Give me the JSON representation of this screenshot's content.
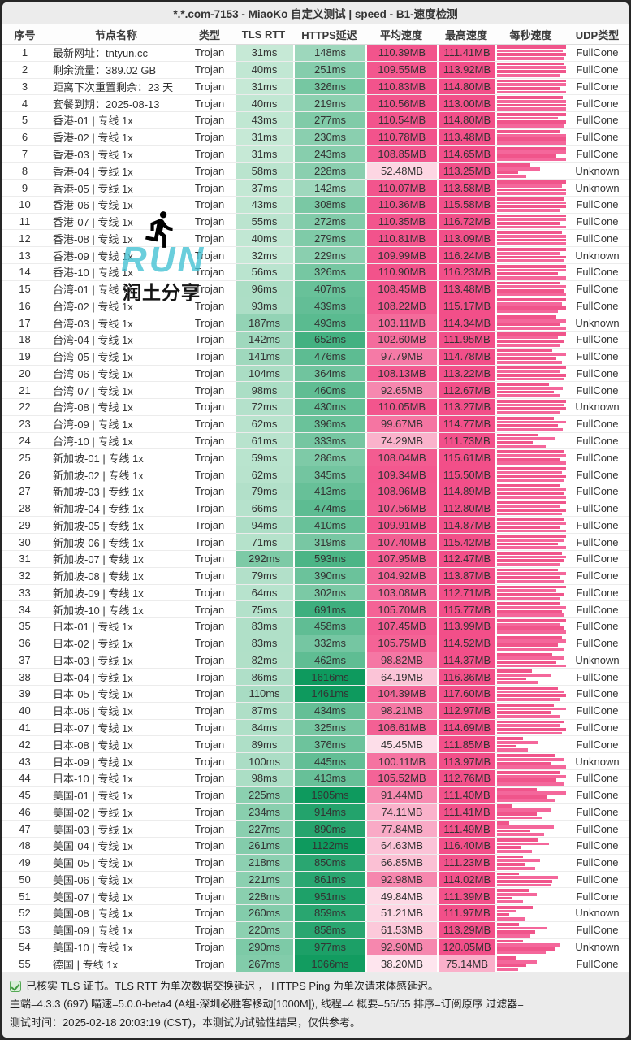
{
  "title": "*.*.com-7153 - MiaoKo 自定义测试 | speed - B1-速度检测",
  "columns": [
    "序号",
    "节点名称",
    "类型",
    "TLS RTT",
    "HTTPS延迟",
    "平均速度",
    "最高速度",
    "每秒速度",
    "UDP类型"
  ],
  "watermark": {
    "run_text": "RUN",
    "share_text": "润土分享",
    "run_color": "#4ac4d5",
    "runner_icon": "running-person"
  },
  "colors": {
    "green_light": "#e4f6ea",
    "green_dark": "#0e9a5e",
    "pink_light": "#fff5f8",
    "pink_deep": "#f24f89",
    "bar_pink": "#f0558b",
    "bar_pink_light": "#f4679b"
  },
  "footer": {
    "line1": "已核实 TLS 证书。TLS RTT 为单次数据交换延迟 ， HTTPS Ping 为单次请求体感延迟。",
    "line2": "主端=4.3.3 (697) 喵速=5.0.0-beta4 (A组-深圳必胜客移动[1000M]), 线程=4 概要=55/55 排序=订阅原序 过滤器=",
    "line3": "测试时间：2025-02-18 20:03:19 (CST)，本测试为试验性结果，仅供参考。"
  },
  "chart_data": {
    "type": "table",
    "title": "*.*.com-7153 - MiaoKo 自定义测试 | speed - B1-速度检测",
    "legend_position": "none",
    "categories": [
      "序号",
      "节点名称",
      "类型",
      "TLS RTT",
      "HTTPS延迟",
      "平均速度",
      "最高速度",
      "UDP类型"
    ]
  },
  "rows": [
    {
      "no": "1",
      "name": "最新网址：tntyun.cc",
      "type": "Trojan",
      "tls": "31ms",
      "https": "148ms",
      "avg": "110.39MB",
      "max": "111.41MB",
      "udp": "FullCone",
      "bars": [
        100,
        95,
        100,
        98
      ]
    },
    {
      "no": "2",
      "name": "剩余流量：389.02 GB",
      "type": "Trojan",
      "tls": "40ms",
      "https": "251ms",
      "avg": "109.55MB",
      "max": "113.92MB",
      "udp": "FullCone",
      "bars": [
        96,
        100,
        100,
        92
      ]
    },
    {
      "no": "3",
      "name": "距离下次重置剩余：23 天",
      "type": "Trojan",
      "tls": "31ms",
      "https": "326ms",
      "avg": "110.83MB",
      "max": "114.80MB",
      "udp": "FullCone",
      "bars": [
        100,
        100,
        90,
        100
      ]
    },
    {
      "no": "4",
      "name": "套餐到期：2025-08-13",
      "type": "Trojan",
      "tls": "40ms",
      "https": "219ms",
      "avg": "110.56MB",
      "max": "113.00MB",
      "udp": "FullCone",
      "bars": [
        95,
        100,
        100,
        100
      ]
    },
    {
      "no": "5",
      "name": "香港-01 | 专线 1x",
      "type": "Trojan",
      "tls": "43ms",
      "https": "277ms",
      "avg": "110.54MB",
      "max": "114.80MB",
      "udp": "FullCone",
      "bars": [
        100,
        88,
        100,
        96
      ]
    },
    {
      "no": "6",
      "name": "香港-02 | 专线 1x",
      "type": "Trojan",
      "tls": "31ms",
      "https": "230ms",
      "avg": "110.78MB",
      "max": "113.48MB",
      "udp": "FullCone",
      "bars": [
        92,
        100,
        100,
        100
      ]
    },
    {
      "no": "7",
      "name": "香港-03 | 专线 1x",
      "type": "Trojan",
      "tls": "31ms",
      "https": "243ms",
      "avg": "108.85MB",
      "max": "114.65MB",
      "udp": "FullCone",
      "bars": [
        100,
        100,
        86,
        100
      ]
    },
    {
      "no": "8",
      "name": "香港-04 | 专线 1x",
      "type": "Trojan",
      "tls": "58ms",
      "https": "228ms",
      "avg": "52.48MB",
      "max": "113.25MB",
      "udp": "Unknown",
      "bars": [
        48,
        62,
        30,
        42
      ]
    },
    {
      "no": "9",
      "name": "香港-05 | 专线 1x",
      "type": "Trojan",
      "tls": "37ms",
      "https": "142ms",
      "avg": "110.07MB",
      "max": "113.58MB",
      "udp": "Unknown",
      "bars": [
        100,
        94,
        100,
        100
      ]
    },
    {
      "no": "10",
      "name": "香港-06 | 专线 1x",
      "type": "Trojan",
      "tls": "43ms",
      "https": "308ms",
      "avg": "110.36MB",
      "max": "115.58MB",
      "udp": "FullCone",
      "bars": [
        96,
        100,
        100,
        90
      ]
    },
    {
      "no": "11",
      "name": "香港-07 | 专线 1x",
      "type": "Trojan",
      "tls": "55ms",
      "https": "272ms",
      "avg": "110.35MB",
      "max": "116.72MB",
      "udp": "FullCone",
      "bars": [
        100,
        100,
        92,
        100
      ]
    },
    {
      "no": "12",
      "name": "香港-08 | 专线 1x",
      "type": "Trojan",
      "tls": "40ms",
      "https": "279ms",
      "avg": "110.81MB",
      "max": "113.09MB",
      "udp": "FullCone",
      "bars": [
        94,
        100,
        100,
        100
      ]
    },
    {
      "no": "13",
      "name": "香港-09 | 专线 1x",
      "type": "Trojan",
      "tls": "32ms",
      "https": "229ms",
      "avg": "109.99MB",
      "max": "116.24MB",
      "udp": "Unknown",
      "bars": [
        100,
        90,
        100,
        96
      ]
    },
    {
      "no": "14",
      "name": "香港-10 | 专线 1x",
      "type": "Trojan",
      "tls": "56ms",
      "https": "326ms",
      "avg": "110.90MB",
      "max": "116.23MB",
      "udp": "FullCone",
      "bars": [
        100,
        100,
        88,
        100
      ]
    },
    {
      "no": "15",
      "name": "台湾-01 | 专线 1x",
      "type": "Trojan",
      "tls": "96ms",
      "https": "407ms",
      "avg": "108.45MB",
      "max": "113.48MB",
      "udp": "FullCone",
      "bars": [
        92,
        100,
        96,
        100
      ]
    },
    {
      "no": "16",
      "name": "台湾-02 | 专线 1x",
      "type": "Trojan",
      "tls": "93ms",
      "https": "439ms",
      "avg": "108.22MB",
      "max": "115.17MB",
      "udp": "FullCone",
      "bars": [
        100,
        94,
        100,
        88
      ]
    },
    {
      "no": "17",
      "name": "台湾-03 | 专线 1x",
      "type": "Trojan",
      "tls": "187ms",
      "https": "493ms",
      "avg": "103.11MB",
      "max": "114.34MB",
      "udp": "Unknown",
      "bars": [
        86,
        100,
        92,
        100
      ]
    },
    {
      "no": "18",
      "name": "台湾-04 | 专线 1x",
      "type": "Trojan",
      "tls": "142ms",
      "https": "652ms",
      "avg": "102.60MB",
      "max": "111.95MB",
      "udp": "FullCone",
      "bars": [
        100,
        88,
        96,
        92
      ]
    },
    {
      "no": "19",
      "name": "台湾-05 | 专线 1x",
      "type": "Trojan",
      "tls": "141ms",
      "https": "476ms",
      "avg": "97.79MB",
      "max": "114.78MB",
      "udp": "FullCone",
      "bars": [
        80,
        100,
        86,
        94
      ]
    },
    {
      "no": "20",
      "name": "台湾-06 | 专线 1x",
      "type": "Trojan",
      "tls": "104ms",
      "https": "364ms",
      "avg": "108.13MB",
      "max": "113.22MB",
      "udp": "FullCone",
      "bars": [
        100,
        92,
        100,
        96
      ]
    },
    {
      "no": "21",
      "name": "台湾-07 | 专线 1x",
      "type": "Trojan",
      "tls": "98ms",
      "https": "460ms",
      "avg": "92.65MB",
      "max": "112.67MB",
      "udp": "FullCone",
      "bars": [
        75,
        95,
        82,
        90
      ]
    },
    {
      "no": "22",
      "name": "台湾-08 | 专线 1x",
      "type": "Trojan",
      "tls": "72ms",
      "https": "430ms",
      "avg": "110.05MB",
      "max": "113.27MB",
      "udp": "Unknown",
      "bars": [
        100,
        96,
        100,
        92
      ]
    },
    {
      "no": "23",
      "name": "台湾-09 | 专线 1x",
      "type": "Trojan",
      "tls": "62ms",
      "https": "396ms",
      "avg": "99.67MB",
      "max": "114.77MB",
      "udp": "FullCone",
      "bars": [
        82,
        100,
        88,
        95
      ]
    },
    {
      "no": "24",
      "name": "台湾-10 | 专线 1x",
      "type": "Trojan",
      "tls": "61ms",
      "https": "333ms",
      "avg": "74.29MB",
      "max": "111.73MB",
      "udp": "FullCone",
      "bars": [
        60,
        85,
        52,
        70
      ]
    },
    {
      "no": "25",
      "name": "新加坡-01 | 专线 1x",
      "type": "Trojan",
      "tls": "59ms",
      "https": "286ms",
      "avg": "108.04MB",
      "max": "115.61MB",
      "udp": "FullCone",
      "bars": [
        96,
        100,
        92,
        100
      ]
    },
    {
      "no": "26",
      "name": "新加坡-02 | 专线 1x",
      "type": "Trojan",
      "tls": "62ms",
      "https": "345ms",
      "avg": "109.34MB",
      "max": "115.50MB",
      "udp": "FullCone",
      "bars": [
        100,
        94,
        100,
        96
      ]
    },
    {
      "no": "27",
      "name": "新加坡-03 | 专线 1x",
      "type": "Trojan",
      "tls": "79ms",
      "https": "413ms",
      "avg": "108.96MB",
      "max": "114.89MB",
      "udp": "FullCone",
      "bars": [
        92,
        100,
        96,
        100
      ]
    },
    {
      "no": "28",
      "name": "新加坡-04 | 专线 1x",
      "type": "Trojan",
      "tls": "66ms",
      "https": "474ms",
      "avg": "107.56MB",
      "max": "112.80MB",
      "udp": "FullCone",
      "bars": [
        100,
        90,
        100,
        94
      ]
    },
    {
      "no": "29",
      "name": "新加坡-05 | 专线 1x",
      "type": "Trojan",
      "tls": "94ms",
      "https": "410ms",
      "avg": "109.91MB",
      "max": "114.87MB",
      "udp": "FullCone",
      "bars": [
        96,
        100,
        92,
        100
      ]
    },
    {
      "no": "30",
      "name": "新加坡-06 | 专线 1x",
      "type": "Trojan",
      "tls": "71ms",
      "https": "319ms",
      "avg": "107.40MB",
      "max": "115.42MB",
      "udp": "FullCone",
      "bars": [
        100,
        96,
        88,
        100
      ]
    },
    {
      "no": "31",
      "name": "新加坡-07 | 专线 1x",
      "type": "Trojan",
      "tls": "292ms",
      "https": "593ms",
      "avg": "107.95MB",
      "max": "112.47MB",
      "udp": "FullCone",
      "bars": [
        94,
        100,
        96,
        92
      ]
    },
    {
      "no": "32",
      "name": "新加坡-08 | 专线 1x",
      "type": "Trojan",
      "tls": "79ms",
      "https": "390ms",
      "avg": "104.92MB",
      "max": "113.87MB",
      "udp": "FullCone",
      "bars": [
        88,
        100,
        92,
        96
      ]
    },
    {
      "no": "33",
      "name": "新加坡-09 | 专线 1x",
      "type": "Trojan",
      "tls": "64ms",
      "https": "302ms",
      "avg": "103.08MB",
      "max": "112.71MB",
      "udp": "FullCone",
      "bars": [
        100,
        86,
        96,
        90
      ]
    },
    {
      "no": "34",
      "name": "新加坡-10 | 专线 1x",
      "type": "Trojan",
      "tls": "75ms",
      "https": "691ms",
      "avg": "105.70MB",
      "max": "115.77MB",
      "udp": "FullCone",
      "bars": [
        90,
        100,
        94,
        96
      ]
    },
    {
      "no": "35",
      "name": "日本-01 | 专线 1x",
      "type": "Trojan",
      "tls": "83ms",
      "https": "458ms",
      "avg": "107.45MB",
      "max": "113.99MB",
      "udp": "FullCone",
      "bars": [
        100,
        92,
        96,
        100
      ]
    },
    {
      "no": "36",
      "name": "日本-02 | 专线 1x",
      "type": "Trojan",
      "tls": "83ms",
      "https": "332ms",
      "avg": "105.75MB",
      "max": "114.52MB",
      "udp": "FullCone",
      "bars": [
        94,
        100,
        88,
        96
      ]
    },
    {
      "no": "37",
      "name": "日本-03 | 专线 1x",
      "type": "Trojan",
      "tls": "82ms",
      "https": "462ms",
      "avg": "98.82MB",
      "max": "114.37MB",
      "udp": "Unknown",
      "bars": [
        80,
        96,
        86,
        100
      ]
    },
    {
      "no": "38",
      "name": "日本-04 | 专线 1x",
      "type": "Trojan",
      "tls": "86ms",
      "https": "1616ms",
      "avg": "64.19MB",
      "max": "116.36MB",
      "udp": "FullCone",
      "bars": [
        50,
        78,
        42,
        60
      ]
    },
    {
      "no": "39",
      "name": "日本-05 | 专线 1x",
      "type": "Trojan",
      "tls": "110ms",
      "https": "1461ms",
      "avg": "104.39MB",
      "max": "117.60MB",
      "udp": "FullCone",
      "bars": [
        88,
        96,
        100,
        90
      ]
    },
    {
      "no": "40",
      "name": "日本-06 | 专线 1x",
      "type": "Trojan",
      "tls": "87ms",
      "https": "434ms",
      "avg": "98.21MB",
      "max": "112.97MB",
      "udp": "FullCone",
      "bars": [
        82,
        100,
        78,
        92
      ]
    },
    {
      "no": "41",
      "name": "日本-07 | 专线 1x",
      "type": "Trojan",
      "tls": "84ms",
      "https": "325ms",
      "avg": "106.61MB",
      "max": "114.69MB",
      "udp": "FullCone",
      "bars": [
        96,
        90,
        100,
        94
      ]
    },
    {
      "no": "42",
      "name": "日本-08 | 专线 1x",
      "type": "Trojan",
      "tls": "89ms",
      "https": "376ms",
      "avg": "45.45MB",
      "max": "111.85MB",
      "udp": "FullCone",
      "bars": [
        38,
        60,
        28,
        45
      ]
    },
    {
      "no": "43",
      "name": "日本-09 | 专线 1x",
      "type": "Trojan",
      "tls": "100ms",
      "https": "445ms",
      "avg": "100.11MB",
      "max": "113.97MB",
      "udp": "Unknown",
      "bars": [
        84,
        96,
        78,
        100
      ]
    },
    {
      "no": "44",
      "name": "日本-10 | 专线 1x",
      "type": "Trojan",
      "tls": "98ms",
      "https": "413ms",
      "avg": "105.52MB",
      "max": "112.76MB",
      "udp": "FullCone",
      "bars": [
        92,
        100,
        86,
        96
      ]
    },
    {
      "no": "45",
      "name": "美国-01 | 专线 1x",
      "type": "Trojan",
      "tls": "225ms",
      "https": "1905ms",
      "avg": "91.44MB",
      "max": "111.40MB",
      "udp": "FullCone",
      "bars": [
        58,
        100,
        72,
        85
      ]
    },
    {
      "no": "46",
      "name": "美国-02 | 专线 1x",
      "type": "Trojan",
      "tls": "234ms",
      "https": "914ms",
      "avg": "74.11MB",
      "max": "111.41MB",
      "udp": "FullCone",
      "bars": [
        22,
        78,
        58,
        65
      ]
    },
    {
      "no": "47",
      "name": "美国-03 | 专线 1x",
      "type": "Trojan",
      "tls": "227ms",
      "https": "890ms",
      "avg": "77.84MB",
      "max": "111.49MB",
      "udp": "FullCone",
      "bars": [
        18,
        82,
        48,
        68
      ]
    },
    {
      "no": "48",
      "name": "美国-04 | 专线 1x",
      "type": "Trojan",
      "tls": "261ms",
      "https": "1122ms",
      "avg": "64.63MB",
      "max": "116.40MB",
      "udp": "FullCone",
      "bars": [
        60,
        75,
        35,
        50
      ]
    },
    {
      "no": "49",
      "name": "美国-05 | 专线 1x",
      "type": "Trojan",
      "tls": "218ms",
      "https": "850ms",
      "avg": "66.85MB",
      "max": "111.23MB",
      "udp": "FullCone",
      "bars": [
        38,
        62,
        40,
        55
      ]
    },
    {
      "no": "50",
      "name": "美国-06 | 专线 1x",
      "type": "Trojan",
      "tls": "221ms",
      "https": "861ms",
      "avg": "92.98MB",
      "max": "114.02MB",
      "udp": "FullCone",
      "bars": [
        32,
        88,
        80,
        78
      ]
    },
    {
      "no": "51",
      "name": "美国-07 | 专线 1x",
      "type": "Trojan",
      "tls": "228ms",
      "https": "951ms",
      "avg": "49.84MB",
      "max": "111.39MB",
      "udp": "FullCone",
      "bars": [
        46,
        58,
        22,
        38
      ]
    },
    {
      "no": "52",
      "name": "美国-08 | 专线 1x",
      "type": "Trojan",
      "tls": "260ms",
      "https": "859ms",
      "avg": "51.21MB",
      "max": "111.97MB",
      "udp": "Unknown",
      "bars": [
        52,
        28,
        18,
        40
      ]
    },
    {
      "no": "53",
      "name": "美国-09 | 专线 1x",
      "type": "Trojan",
      "tls": "220ms",
      "https": "858ms",
      "avg": "61.53MB",
      "max": "113.29MB",
      "udp": "FullCone",
      "bars": [
        32,
        72,
        55,
        48
      ]
    },
    {
      "no": "54",
      "name": "美国-10 | 专线 1x",
      "type": "Trojan",
      "tls": "290ms",
      "https": "977ms",
      "avg": "92.90MB",
      "max": "120.05MB",
      "udp": "Unknown",
      "bars": [
        38,
        92,
        85,
        70
      ]
    },
    {
      "no": "55",
      "name": "德国 | 专线 1x",
      "type": "Trojan",
      "tls": "267ms",
      "https": "1066ms",
      "avg": "38.20MB",
      "max": "75.14MB",
      "udp": "FullCone",
      "bars": [
        28,
        58,
        42,
        30
      ]
    }
  ]
}
